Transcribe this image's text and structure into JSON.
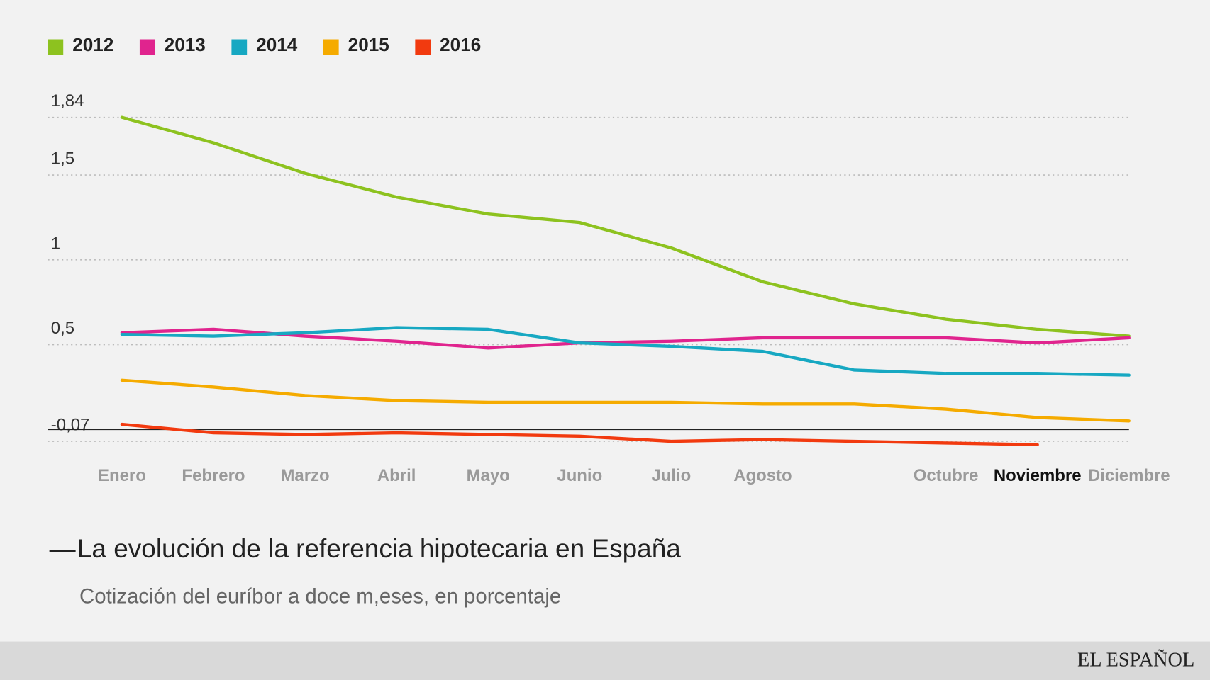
{
  "chart_data": {
    "type": "line",
    "title": "La evolución de la referencia hipotecaria en España",
    "subtitle": "Cotización del euríbor a doce m,eses, en porcentaje",
    "source": "EL ESPAÑOL",
    "categories": [
      "Enero",
      "Febrero",
      "Marzo",
      "Abril",
      "Mayo",
      "Junio",
      "Julio",
      "Agosto",
      null,
      "Octubre",
      "Noviembre",
      "Diciembre"
    ],
    "highlighted_category": 10,
    "series": [
      {
        "name": "2012",
        "color": "#8dc21f",
        "values": [
          1.84,
          1.69,
          1.51,
          1.37,
          1.27,
          1.22,
          1.07,
          0.87,
          0.74,
          0.65,
          0.59,
          0.55
        ]
      },
      {
        "name": "2013",
        "color": "#e0248e",
        "values": [
          0.57,
          0.59,
          0.55,
          0.52,
          0.48,
          0.51,
          0.52,
          0.54,
          0.54,
          0.54,
          0.51,
          0.54
        ]
      },
      {
        "name": "2014",
        "color": "#17a8c2",
        "values": [
          0.56,
          0.55,
          0.57,
          0.6,
          0.59,
          0.51,
          0.49,
          0.46,
          0.35,
          0.33,
          0.33,
          0.32
        ]
      },
      {
        "name": "2015",
        "color": "#f5ab00",
        "values": [
          0.29,
          0.25,
          0.2,
          0.17,
          0.16,
          0.16,
          0.16,
          0.15,
          0.15,
          0.12,
          0.07,
          0.05
        ]
      },
      {
        "name": "2016",
        "color": "#f23a0f",
        "values": [
          0.03,
          -0.02,
          -0.03,
          -0.02,
          -0.03,
          -0.04,
          -0.07,
          -0.06,
          -0.07,
          -0.08,
          -0.09,
          null
        ]
      }
    ],
    "ylim": [
      -0.1,
      1.9
    ],
    "yticks": [
      {
        "value": -0.07,
        "label": "-0,07"
      },
      {
        "value": 0.5,
        "label": "0,5"
      },
      {
        "value": 1,
        "label": "1"
      },
      {
        "value": 1.5,
        "label": "1,5"
      },
      {
        "value": 1.84,
        "label": "1,84"
      }
    ],
    "grid": true,
    "legend": "top-left"
  }
}
